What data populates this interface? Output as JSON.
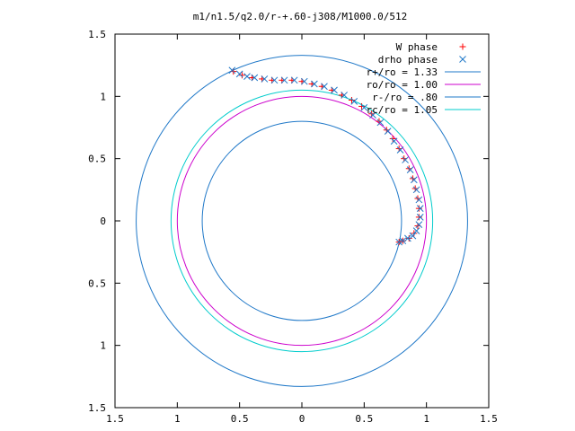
{
  "chart_data": {
    "type": "scatter",
    "title": "m1/n1.5/q2.0/r-+.60-j308/M1000.0/512",
    "xlim": [
      -1.5,
      1.5
    ],
    "ylim": [
      -1.5,
      1.5
    ],
    "xticks": [
      -1.5,
      -1,
      -0.5,
      0,
      0.5,
      1,
      1.5
    ],
    "yticks": [
      -1.5,
      -1,
      -0.5,
      0,
      0.5,
      1,
      1.5
    ],
    "xtick_labels": [
      "1.5",
      "1",
      "0.5",
      "0",
      "0.5",
      "1",
      "1.5"
    ],
    "ytick_labels": [
      "1.5",
      "1",
      "0.5",
      "0",
      "0.5",
      "1",
      "1.5"
    ],
    "grid": false,
    "legend_position": "top-right",
    "series": [
      {
        "name": "W phase",
        "kind": "points",
        "marker": "plus",
        "color": "#ff0000",
        "x": [
          -0.55,
          -0.48,
          -0.4,
          -0.32,
          -0.24,
          -0.16,
          -0.08,
          0.0,
          0.08,
          0.16,
          0.24,
          0.32,
          0.4,
          0.48,
          0.56,
          0.62,
          0.68,
          0.73,
          0.78,
          0.82,
          0.86,
          0.89,
          0.91,
          0.93,
          0.94,
          0.94,
          0.93,
          0.9,
          0.86,
          0.81,
          0.78
        ],
        "y": [
          1.2,
          1.17,
          1.15,
          1.14,
          1.13,
          1.13,
          1.13,
          1.12,
          1.1,
          1.08,
          1.05,
          1.01,
          0.97,
          0.92,
          0.86,
          0.8,
          0.73,
          0.66,
          0.58,
          0.5,
          0.42,
          0.34,
          0.26,
          0.18,
          0.1,
          0.03,
          -0.04,
          -0.1,
          -0.14,
          -0.16,
          -0.17
        ]
      },
      {
        "name": "drho phase",
        "kind": "points",
        "marker": "cross",
        "color": "#1f78c8",
        "x": [
          -0.56,
          -0.5,
          -0.44,
          -0.38,
          -0.3,
          -0.22,
          -0.14,
          -0.06,
          0.02,
          0.1,
          0.18,
          0.26,
          0.34,
          0.42,
          0.5,
          0.57,
          0.63,
          0.69,
          0.74,
          0.79,
          0.83,
          0.87,
          0.9,
          0.92,
          0.94,
          0.95,
          0.95,
          0.94,
          0.92,
          0.89,
          0.85,
          0.81,
          0.78
        ],
        "y": [
          1.21,
          1.18,
          1.16,
          1.15,
          1.14,
          1.13,
          1.13,
          1.13,
          1.12,
          1.1,
          1.08,
          1.05,
          1.01,
          0.96,
          0.91,
          0.85,
          0.79,
          0.72,
          0.64,
          0.57,
          0.49,
          0.41,
          0.33,
          0.25,
          0.17,
          0.1,
          0.03,
          -0.03,
          -0.08,
          -0.12,
          -0.14,
          -0.16,
          -0.17
        ]
      },
      {
        "name": "r+/ro = 1.33",
        "kind": "circle",
        "radius": 1.33,
        "color": "#1f78c8"
      },
      {
        "name": "ro/ro = 1.00",
        "kind": "circle",
        "radius": 1.0,
        "color": "#cc00cc"
      },
      {
        "name": "r-/ro = .80",
        "kind": "circle",
        "radius": 0.8,
        "color": "#1f78c8"
      },
      {
        "name": "rc/ro = 1.05",
        "kind": "circle",
        "radius": 1.05,
        "color": "#00cccc"
      }
    ]
  }
}
